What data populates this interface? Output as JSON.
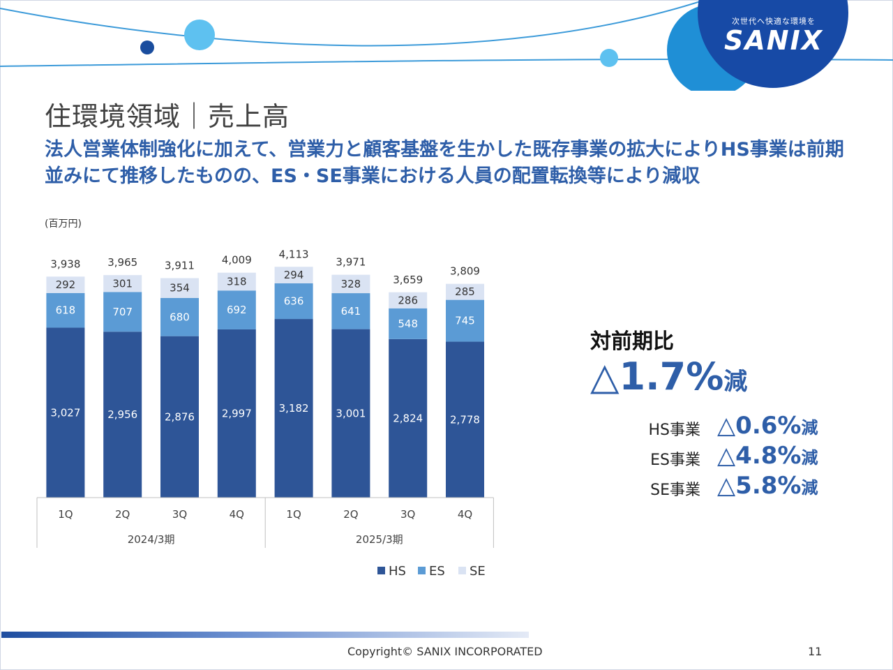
{
  "header": {
    "title": "住環境領域｜売上高",
    "subtitle": "法人営業体制強化に加えて、営業力と顧客基盤を生かした既存事業の拡大によりHS事業は前期並みにて推移したものの、ES・SE事業における人員の配置転換等により減収"
  },
  "logo": {
    "tagline": "次世代へ快適な環境を",
    "name": "SANIX"
  },
  "chart_unit": "(百万円)",
  "comparison": {
    "heading": "対前期比",
    "total": {
      "symbol": "△",
      "value": "1.7%",
      "suffix": "減"
    },
    "items": [
      {
        "label": "HS事業",
        "symbol": "△",
        "value": "0.6%",
        "suffix": "減"
      },
      {
        "label": "ES事業",
        "symbol": "△",
        "value": "4.8%",
        "suffix": "減"
      },
      {
        "label": "SE事業",
        "symbol": "△",
        "value": "5.8%",
        "suffix": "減"
      }
    ]
  },
  "footer": {
    "copyright": "Copyright©  SANIX INCORPORATED",
    "page": "11"
  },
  "colors": {
    "hs": "#2e5597",
    "es": "#5b9bd5",
    "se": "#dae3f3",
    "accent": "#2e5ea8"
  },
  "chart_data": {
    "type": "bar",
    "stacked": true,
    "unit": "(百万円)",
    "categories": [
      "1Q",
      "2Q",
      "3Q",
      "4Q",
      "1Q",
      "2Q",
      "3Q",
      "4Q"
    ],
    "groups": [
      {
        "label": "2024/3期",
        "start": 0,
        "count": 4
      },
      {
        "label": "2025/3期",
        "start": 4,
        "count": 4
      }
    ],
    "series": [
      {
        "name": "HS",
        "color": "#2e5597",
        "values": [
          3027,
          2956,
          2876,
          2997,
          3182,
          3001,
          2824,
          2778
        ]
      },
      {
        "name": "ES",
        "color": "#5b9bd5",
        "values": [
          618,
          707,
          680,
          692,
          636,
          641,
          548,
          745
        ]
      },
      {
        "name": "SE",
        "color": "#dae3f3",
        "values": [
          292,
          301,
          354,
          318,
          294,
          328,
          286,
          285
        ]
      }
    ],
    "totals": [
      3938,
      3965,
      3911,
      4009,
      4113,
      3971,
      3659,
      3809
    ],
    "ylim": [
      0,
      4600
    ],
    "legend_position": "bottom",
    "grid": false
  }
}
